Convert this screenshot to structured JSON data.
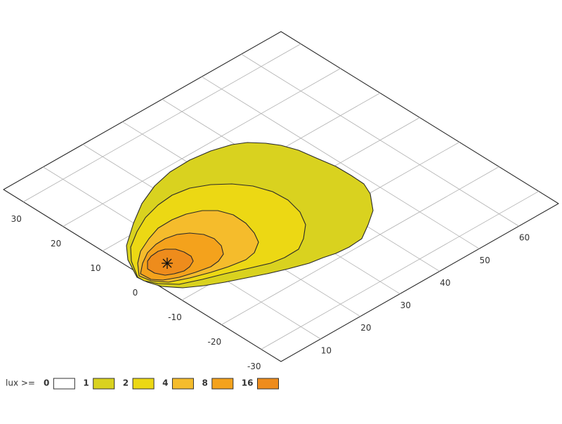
{
  "chart_data": {
    "type": "contour",
    "legend_title": "lux >=",
    "levels": [
      0,
      1,
      2,
      4,
      8,
      16
    ],
    "colors": [
      "#ffffff",
      "#d9d21f",
      "#ecd814",
      "#f5bc2c",
      "#f4a21c",
      "#ee8c1c"
    ],
    "xlim": [
      0,
      70
    ],
    "xticks": [
      10,
      20,
      30,
      40,
      50,
      60
    ],
    "ylim": [
      -35,
      35
    ],
    "yticks": [
      -30,
      -20,
      -10,
      0,
      10,
      20,
      30
    ],
    "grid": true
  }
}
